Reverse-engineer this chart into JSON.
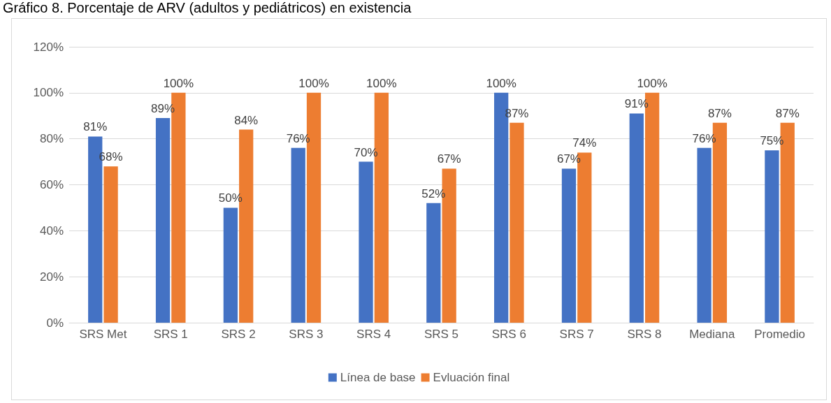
{
  "chart_data": {
    "type": "bar",
    "title": "Gráfico 8. Porcentaje de ARV (adultos y pediátricos) en existencia",
    "categories": [
      "SRS Met",
      "SRS 1",
      "SRS 2",
      "SRS 3",
      "SRS 4",
      "SRS 5",
      "SRS 6",
      "SRS 7",
      "SRS 8",
      "Mediana",
      "Promedio"
    ],
    "series": [
      {
        "name": "Línea de base",
        "color": "#4472c4",
        "values": [
          81,
          89,
          50,
          76,
          70,
          52,
          100,
          67,
          91,
          76,
          75
        ],
        "value_labels": [
          "81%",
          "89%",
          "50%",
          "76%",
          "70%",
          "52%",
          "100%",
          "67%",
          "91%",
          "76%",
          "75%"
        ]
      },
      {
        "name": "Evluación final",
        "color": "#ed7d31",
        "values": [
          68,
          100,
          84,
          100,
          100,
          67,
          87,
          74,
          100,
          87,
          87
        ],
        "value_labels": [
          "68%",
          "100%",
          "84%",
          "100%",
          "100%",
          "67%",
          "87%",
          "74%",
          "100%",
          "87%",
          "87%"
        ]
      }
    ],
    "ylim": [
      0,
      120
    ],
    "yticks": [
      {
        "value": 0,
        "label": "0%"
      },
      {
        "value": 20,
        "label": "20%"
      },
      {
        "value": 40,
        "label": "40%"
      },
      {
        "value": 60,
        "label": "60%"
      },
      {
        "value": 80,
        "label": "80%"
      },
      {
        "value": 100,
        "label": "100%"
      },
      {
        "value": 120,
        "label": "120%"
      }
    ],
    "grid": "y",
    "legend": "bottom"
  }
}
